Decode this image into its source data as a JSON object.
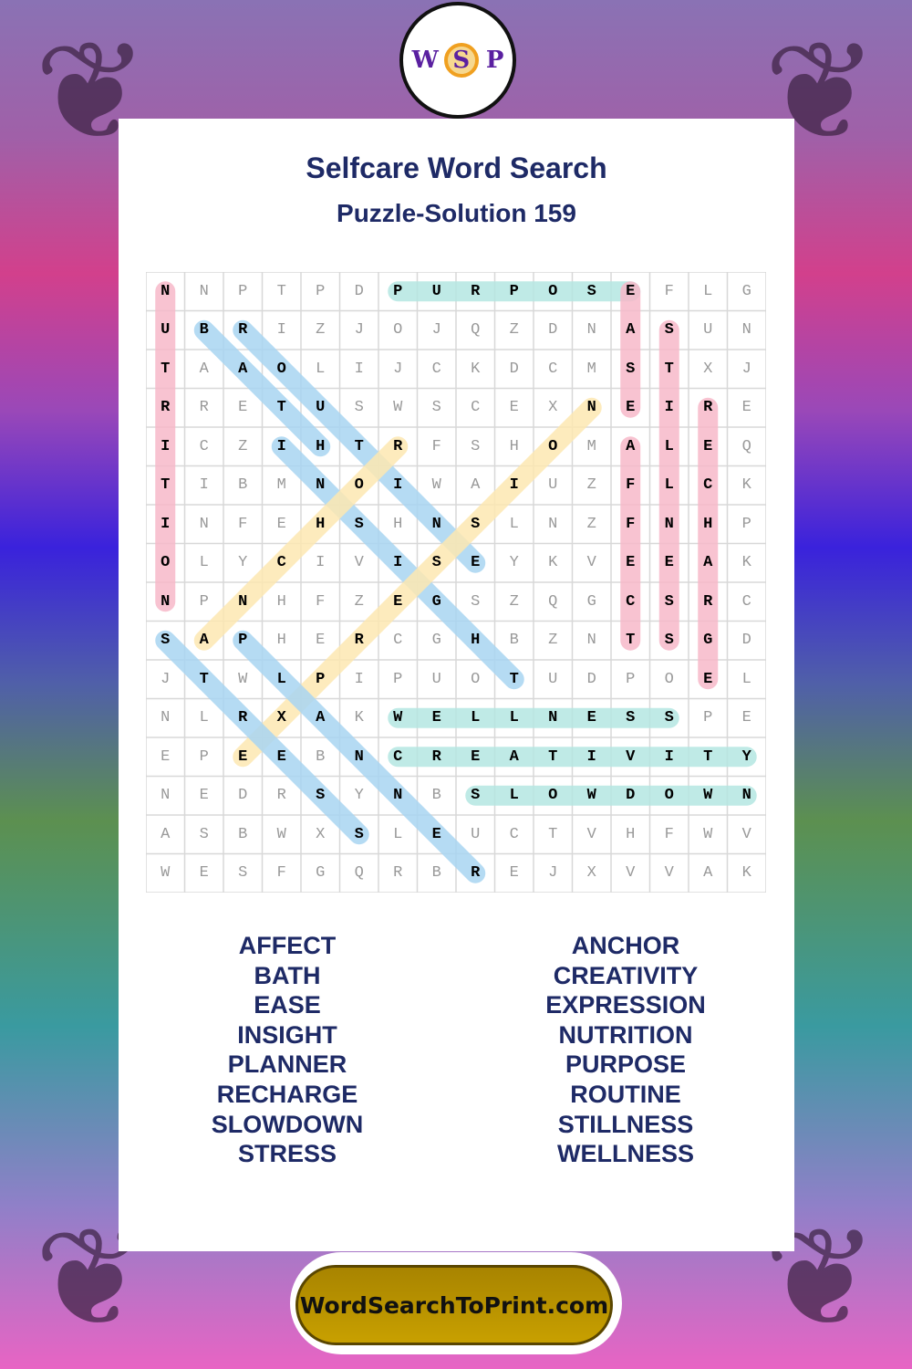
{
  "logo": {
    "letters": [
      "W",
      "S",
      "P"
    ]
  },
  "title": "Selfcare Word Search",
  "subtitle": "Puzzle-Solution 159",
  "grid": [
    "NNPTPDPURPOSEFLG",
    "UBRIZJOJQZDNASUN",
    "TAAOLIJCKDCMSTXJ",
    "RRETUSWSCEXNEIRE",
    "ICZIHTRFSHOMALEQ",
    "TIBMNOIWAIUZFLCK",
    "INFEHSHNSLNZFNHP",
    "OLYCIVISEYKVEEAK",
    "NPNHFZEGSZQGCSRC",
    "SAPHERCGHBZNTSGD",
    "JTWLPIPUOTUDPOEL",
    "NLRXAKWELLNESSPE",
    "EPEEBNCREATIVITY",
    "NEDRSYNBSLOWDOWN",
    "ASBWXSLEUCTVHFWV",
    "WESFGQRBREJXVVAK"
  ],
  "colors": {
    "pink": "#f7b9c9",
    "blue": "#a9d5f2",
    "yellow": "#fde8b2",
    "teal": "#b5e7e2",
    "title": "#1e2a66"
  },
  "solutions": [
    {
      "word": "NUTRITION",
      "from": [
        0,
        0
      ],
      "to": [
        8,
        0
      ],
      "color": "pink"
    },
    {
      "word": "PURPOSE",
      "from": [
        0,
        6
      ],
      "to": [
        0,
        12
      ],
      "color": "teal"
    },
    {
      "word": "EASE",
      "from": [
        0,
        12
      ],
      "to": [
        3,
        12
      ],
      "color": "pink"
    },
    {
      "word": "AFFECT",
      "from": [
        4,
        12
      ],
      "to": [
        9,
        12
      ],
      "color": "pink"
    },
    {
      "word": "STILLNESS",
      "from": [
        1,
        13
      ],
      "to": [
        9,
        13
      ],
      "color": "pink"
    },
    {
      "word": "RECHARGE",
      "from": [
        3,
        14
      ],
      "to": [
        10,
        14
      ],
      "color": "pink"
    },
    {
      "word": "BATH",
      "from": [
        1,
        1
      ],
      "to": [
        4,
        4
      ],
      "color": "blue"
    },
    {
      "word": "ROUTINE",
      "from": [
        1,
        2
      ],
      "to": [
        7,
        8
      ],
      "color": "blue"
    },
    {
      "word": "INSIGHT",
      "from": [
        4,
        3
      ],
      "to": [
        10,
        9
      ],
      "color": "blue"
    },
    {
      "word": "EXPRESSION",
      "from": [
        12,
        2
      ],
      "to": [
        3,
        11
      ],
      "color": "yellow"
    },
    {
      "word": "ANCHOR",
      "from": [
        9,
        1
      ],
      "to": [
        4,
        6
      ],
      "color": "yellow"
    },
    {
      "word": "STRESS",
      "from": [
        9,
        0
      ],
      "to": [
        14,
        5
      ],
      "color": "blue"
    },
    {
      "word": "PLANNER",
      "from": [
        9,
        2
      ],
      "to": [
        15,
        8
      ],
      "color": "blue"
    },
    {
      "word": "WELLNESS",
      "from": [
        11,
        6
      ],
      "to": [
        11,
        13
      ],
      "color": "teal"
    },
    {
      "word": "CREATIVITY",
      "from": [
        12,
        6
      ],
      "to": [
        12,
        15
      ],
      "color": "teal"
    },
    {
      "word": "SLOWDOWN",
      "from": [
        13,
        8
      ],
      "to": [
        13,
        15
      ],
      "color": "teal"
    }
  ],
  "word_list_left": [
    "AFFECT",
    "BATH",
    "EASE",
    "INSIGHT",
    "PLANNER",
    "RECHARGE",
    "SLOWDOWN",
    "STRESS"
  ],
  "word_list_right": [
    "ANCHOR",
    "CREATIVITY",
    "EXPRESSION",
    "NUTRITION",
    "PURPOSE",
    "ROUTINE",
    "STILLNESS",
    "WELLNESS"
  ],
  "footer": {
    "site": "WordSearchToPrint.com"
  }
}
